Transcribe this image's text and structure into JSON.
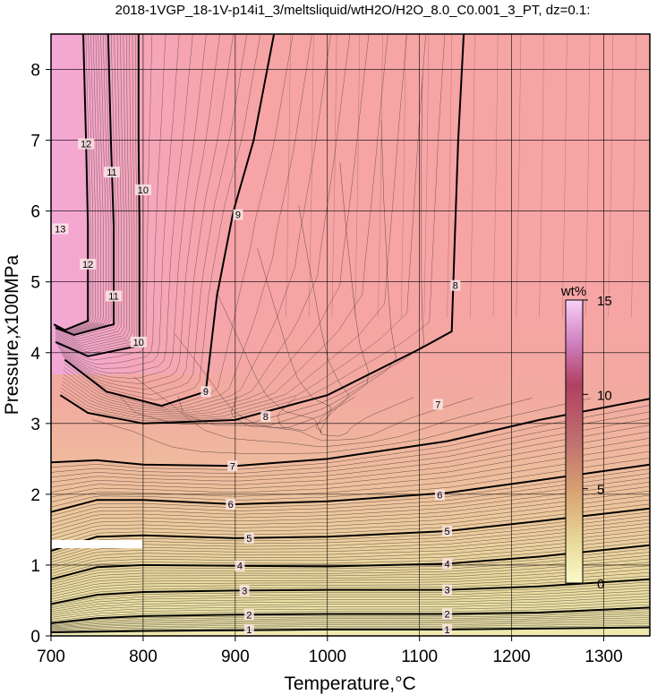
{
  "chart_data": {
    "type": "contour",
    "title": "2018-1VGP_18-1V-p14i1_3/meltsliquid/wtH2O/H2O_8.0_C0.001_3_PT, dz=0.1:",
    "xlabel": "Temperature,°C",
    "ylabel": "Pressure,x100MPa",
    "xlim": [
      700,
      1350
    ],
    "ylim": [
      0,
      8.5
    ],
    "xticks": [
      700,
      800,
      900,
      1000,
      1100,
      1200,
      1300
    ],
    "yticks": [
      0,
      1,
      2,
      3,
      4,
      5,
      6,
      7,
      8
    ],
    "grid": true,
    "colorbar": {
      "label": "wt%",
      "range": [
        0,
        15
      ],
      "ticks": [
        0,
        5,
        10,
        15
      ],
      "placement": "inside-right"
    },
    "colors": {
      "high": "#f6a2c8",
      "mid": "#f6a4a4",
      "low": "#e6d49a",
      "lowest": "#eeeab0",
      "grid": "#000000"
    },
    "contour_levels": [
      {
        "value": 1,
        "points": [
          [
            700,
            0.05
          ],
          [
            800,
            0.07
          ],
          [
            900,
            0.08
          ],
          [
            1000,
            0.09
          ],
          [
            1130,
            0.09
          ],
          [
            1350,
            0.12
          ]
        ]
      },
      {
        "value": 2,
        "points": [
          [
            700,
            0.18
          ],
          [
            750,
            0.25
          ],
          [
            800,
            0.28
          ],
          [
            900,
            0.3
          ],
          [
            1000,
            0.31
          ],
          [
            1130,
            0.31
          ],
          [
            1230,
            0.33
          ],
          [
            1350,
            0.4
          ]
        ]
      },
      {
        "value": 3,
        "points": [
          [
            700,
            0.45
          ],
          [
            750,
            0.58
          ],
          [
            800,
            0.62
          ],
          [
            900,
            0.64
          ],
          [
            1000,
            0.65
          ],
          [
            1130,
            0.65
          ],
          [
            1230,
            0.7
          ],
          [
            1350,
            0.8
          ]
        ]
      },
      {
        "value": 4,
        "points": [
          [
            700,
            0.8
          ],
          [
            750,
            0.97
          ],
          [
            800,
            1.0
          ],
          [
            900,
            0.99
          ],
          [
            1000,
            0.98
          ],
          [
            1130,
            1.02
          ],
          [
            1230,
            1.12
          ],
          [
            1350,
            1.28
          ]
        ]
      },
      {
        "value": 5,
        "points": [
          [
            700,
            1.2
          ],
          [
            750,
            1.4
          ],
          [
            800,
            1.42
          ],
          [
            900,
            1.38
          ],
          [
            1000,
            1.4
          ],
          [
            1130,
            1.48
          ],
          [
            1230,
            1.62
          ],
          [
            1350,
            1.8
          ]
        ]
      },
      {
        "value": 6,
        "points": [
          [
            700,
            1.75
          ],
          [
            750,
            1.92
          ],
          [
            800,
            1.92
          ],
          [
            900,
            1.86
          ],
          [
            1000,
            1.9
          ],
          [
            1130,
            2.02
          ],
          [
            1230,
            2.2
          ],
          [
            1350,
            2.42
          ]
        ]
      },
      {
        "value": 7,
        "points": [
          [
            700,
            2.45
          ],
          [
            750,
            2.48
          ],
          [
            800,
            2.42
          ],
          [
            900,
            2.4
          ],
          [
            1000,
            2.5
          ],
          [
            1130,
            2.75
          ],
          [
            1230,
            3.05
          ],
          [
            1350,
            3.35
          ]
        ]
      },
      {
        "value": 8,
        "points": [
          [
            1148,
            8.5
          ],
          [
            1142,
            7.0
          ],
          [
            1138,
            5.5
          ],
          [
            1135,
            4.3
          ],
          [
            1100,
            4.05
          ],
          [
            1000,
            3.4
          ],
          [
            900,
            3.05
          ],
          [
            800,
            3.0
          ],
          [
            740,
            3.15
          ],
          [
            710,
            3.4
          ]
        ]
      },
      {
        "value": 9,
        "points": [
          [
            942,
            8.5
          ],
          [
            920,
            7.0
          ],
          [
            898,
            6.0
          ],
          [
            880,
            4.8
          ],
          [
            868,
            3.45
          ],
          [
            820,
            3.25
          ],
          [
            760,
            3.45
          ],
          [
            715,
            3.9
          ]
        ]
      },
      {
        "value": 10,
        "points": [
          [
            795,
            8.5
          ],
          [
            795,
            7.0
          ],
          [
            796,
            5.8
          ],
          [
            796,
            4.1
          ],
          [
            740,
            3.95
          ],
          [
            705,
            4.15
          ]
        ]
      },
      {
        "value": 11,
        "points": [
          [
            762,
            8.5
          ],
          [
            765,
            7.0
          ],
          [
            768,
            5.8
          ],
          [
            768,
            4.4
          ],
          [
            725,
            4.25
          ],
          [
            705,
            4.35
          ]
        ]
      },
      {
        "value": 12,
        "points": [
          [
            735,
            8.5
          ],
          [
            738,
            7.0
          ],
          [
            740,
            5.8
          ],
          [
            740,
            4.45
          ],
          [
            715,
            4.32
          ],
          [
            703,
            4.4
          ]
        ]
      }
    ],
    "contour_labels": [
      {
        "text": "1",
        "x": 915,
        "y": 0.09
      },
      {
        "text": "1",
        "x": 1130,
        "y": 0.09
      },
      {
        "text": "2",
        "x": 915,
        "y": 0.3
      },
      {
        "text": "2",
        "x": 1130,
        "y": 0.31
      },
      {
        "text": "3",
        "x": 910,
        "y": 0.64
      },
      {
        "text": "3",
        "x": 1130,
        "y": 0.65
      },
      {
        "text": "4",
        "x": 905,
        "y": 0.99
      },
      {
        "text": "4",
        "x": 1130,
        "y": 1.02
      },
      {
        "text": "5",
        "x": 915,
        "y": 1.38
      },
      {
        "text": "5",
        "x": 1130,
        "y": 1.48
      },
      {
        "text": "6",
        "x": 895,
        "y": 1.86
      },
      {
        "text": "6",
        "x": 1122,
        "y": 1.99
      },
      {
        "text": "7",
        "x": 897,
        "y": 2.4
      },
      {
        "text": "7",
        "x": 1120,
        "y": 3.27
      },
      {
        "text": "8",
        "x": 933,
        "y": 3.1
      },
      {
        "text": "8",
        "x": 1139,
        "y": 4.95
      },
      {
        "text": "9",
        "x": 868,
        "y": 3.45
      },
      {
        "text": "9",
        "x": 903,
        "y": 5.95
      },
      {
        "text": "10",
        "x": 795,
        "y": 4.15
      },
      {
        "text": "10",
        "x": 800,
        "y": 6.3
      },
      {
        "text": "11",
        "x": 768,
        "y": 4.8
      },
      {
        "text": "11",
        "x": 766,
        "y": 6.55
      },
      {
        "text": "12",
        "x": 740,
        "y": 5.25
      },
      {
        "text": "12",
        "x": 738,
        "y": 6.95
      },
      {
        "text": "13",
        "x": 710,
        "y": 5.75
      }
    ]
  }
}
